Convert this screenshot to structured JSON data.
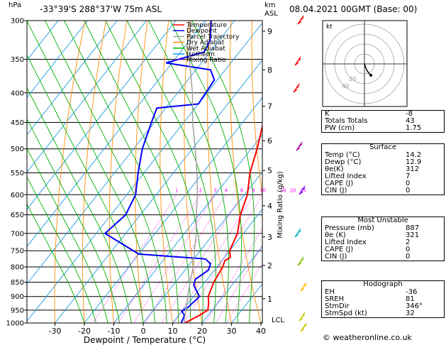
{
  "header": {
    "hpa_unit": "hPa",
    "km_unit": "km",
    "asl_unit": "ASL",
    "location": "-33°39'S 288°37'W 75m ASL",
    "datetime": "08.04.2021 00GMT (Base: 00)"
  },
  "legend": [
    {
      "label": "Temperature",
      "color": "#ff0000",
      "style": "solid"
    },
    {
      "label": "Dewpoint",
      "color": "#0000ff",
      "style": "solid"
    },
    {
      "label": "Parcel Trajectory",
      "color": "#a0a0a0",
      "style": "solid"
    },
    {
      "label": "Dry Adiabat",
      "color": "#ff8c00",
      "style": "solid"
    },
    {
      "label": "Wet Adiabat",
      "color": "#00b000",
      "style": "solid"
    },
    {
      "label": "Isotherm",
      "color": "#00a0ff",
      "style": "solid"
    },
    {
      "label": "Mixing Ratio",
      "color": "#ff00ff",
      "style": "dotted"
    }
  ],
  "chart_data": {
    "type": "line",
    "xlabel": "Dewpoint / Temperature (°C)",
    "y2label": "Mixing Ratio (g/kg)",
    "x_ticks": [
      -30,
      -20,
      -10,
      0,
      10,
      20,
      30,
      40
    ],
    "xlim": [
      -35,
      40
    ],
    "pressure_levels": [
      300,
      350,
      400,
      450,
      500,
      550,
      600,
      650,
      700,
      750,
      800,
      850,
      900,
      950,
      1000
    ],
    "ylim_hpa": [
      1000,
      300
    ],
    "km_ticks": [
      {
        "km": "1",
        "p": 908
      },
      {
        "km": "2",
        "p": 795
      },
      {
        "km": "3",
        "p": 710
      },
      {
        "km": "4",
        "p": 627
      },
      {
        "km": "5",
        "p": 545
      },
      {
        "km": "6",
        "p": 484
      },
      {
        "km": "7",
        "p": 422
      },
      {
        "km": "8",
        "p": 365
      },
      {
        "km": "9",
        "p": 313
      }
    ],
    "lcl_label": "LCL",
    "lcl_p": 995,
    "mixing_ratio_labels": [
      "1",
      "2",
      "3",
      "4",
      "6",
      "8",
      "10",
      "16",
      "20",
      "25"
    ],
    "mixing_ratio_values": [
      1,
      2,
      3,
      4,
      6,
      8,
      10,
      16,
      20,
      25
    ],
    "series": [
      {
        "name": "Temperature",
        "color": "#ff0000",
        "points": [
          [
            14.2,
            1000
          ],
          [
            17,
            970
          ],
          [
            18.5,
            950
          ],
          [
            17,
            925
          ],
          [
            15,
            900
          ],
          [
            13,
            850
          ],
          [
            12,
            800
          ],
          [
            11,
            780
          ],
          [
            12,
            770
          ],
          [
            10,
            750
          ],
          [
            8,
            700
          ],
          [
            4,
            650
          ],
          [
            1,
            600
          ],
          [
            -4,
            550
          ],
          [
            -8,
            500
          ],
          [
            -13,
            450
          ],
          [
            -19,
            400
          ],
          [
            -26,
            350
          ],
          [
            -34,
            300
          ]
        ]
      },
      {
        "name": "Dewpoint",
        "color": "#0000ff",
        "points": [
          [
            12.9,
            1000
          ],
          [
            12,
            970
          ],
          [
            10,
            955
          ],
          [
            11,
            940
          ],
          [
            12,
            900
          ],
          [
            7,
            860
          ],
          [
            6,
            840
          ],
          [
            8,
            810
          ],
          [
            7,
            790
          ],
          [
            4,
            775
          ],
          [
            -20,
            760
          ],
          [
            -37,
            700
          ],
          [
            -35,
            650
          ],
          [
            -37,
            600
          ],
          [
            -42,
            550
          ],
          [
            -47,
            500
          ],
          [
            -51,
            450
          ],
          [
            -53,
            425
          ],
          [
            -40,
            418
          ],
          [
            -41,
            380
          ],
          [
            -45,
            365
          ],
          [
            -62,
            355
          ],
          [
            -52,
            340
          ],
          [
            -53,
            325
          ],
          [
            -58,
            300
          ]
        ]
      },
      {
        "name": "Parcel Trajectory",
        "color": "#a0a0a0",
        "points": [
          [
            14.2,
            1000
          ],
          [
            13.6,
            995
          ],
          [
            11,
            950
          ],
          [
            8,
            900
          ],
          [
            5,
            850
          ],
          [
            2,
            800
          ],
          [
            -2,
            750
          ],
          [
            -6,
            700
          ],
          [
            -11,
            650
          ],
          [
            -16,
            600
          ],
          [
            -22,
            550
          ],
          [
            -29,
            500
          ],
          [
            -37,
            450
          ],
          [
            -45,
            400
          ],
          [
            -55,
            350
          ],
          [
            -65,
            300
          ]
        ]
      }
    ]
  },
  "hodograph": {
    "label": "kt",
    "ring_labels": [
      "20",
      "40"
    ]
  },
  "indices": [
    {
      "label": "K",
      "value": "-8"
    },
    {
      "label": "Totals Totals",
      "value": "43"
    },
    {
      "label": "PW (cm)",
      "value": "1.75"
    }
  ],
  "surface": {
    "title": "Surface",
    "rows": [
      {
        "label": "Temp (°C)",
        "value": "14.2"
      },
      {
        "label": "Dewp (°C)",
        "value": "12.9"
      },
      {
        "label": "θe(K)",
        "value": "312"
      },
      {
        "label": "Lifted Index",
        "value": "7"
      },
      {
        "label": "CAPE (J)",
        "value": "0"
      },
      {
        "label": "CIN (J)",
        "value": "0"
      }
    ]
  },
  "most_unstable": {
    "title": "Most Unstable",
    "rows": [
      {
        "label": "Pressure (mb)",
        "value": "887"
      },
      {
        "label": "θe (K)",
        "value": "321"
      },
      {
        "label": "Lifted Index",
        "value": "2"
      },
      {
        "label": "CAPE (J)",
        "value": "0"
      },
      {
        "label": "CIN (J)",
        "value": "0"
      }
    ]
  },
  "hodograph_table": {
    "title": "Hodograph",
    "rows": [
      {
        "label": "EH",
        "value": "-36"
      },
      {
        "label": "SREH",
        "value": "81"
      },
      {
        "label": "StmDir",
        "value": "346°"
      },
      {
        "label": "StmSpd (kt)",
        "value": "32"
      }
    ]
  },
  "footer": "© weatheronline.co.uk"
}
